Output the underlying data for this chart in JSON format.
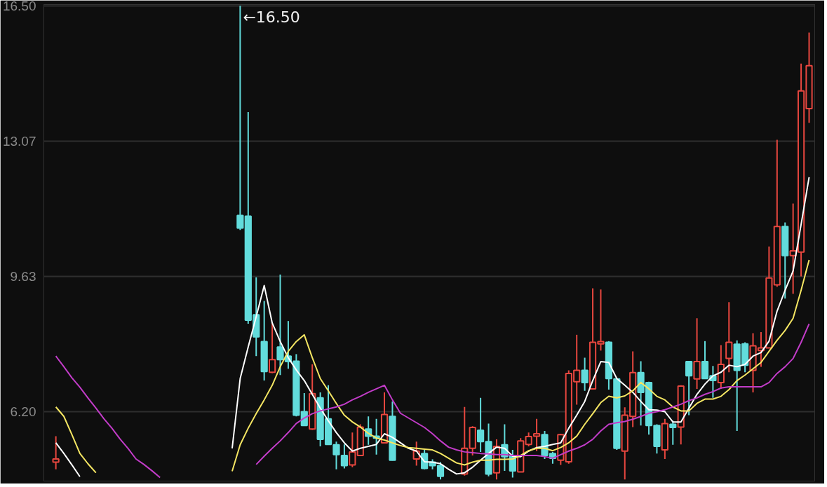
{
  "chart_data": {
    "type": "candlestick",
    "categories": [
      null,
      null,
      null,
      null,
      null,
      null,
      null,
      null,
      null,
      null,
      null,
      null,
      null,
      null,
      null,
      null,
      null,
      null,
      null,
      null,
      null,
      null,
      null,
      null,
      null,
      null,
      null,
      null,
      null,
      null,
      null,
      null,
      null,
      null,
      null,
      null,
      null,
      null,
      null,
      null,
      null,
      null,
      null,
      null,
      null,
      null,
      null,
      null,
      null,
      null,
      null,
      null,
      null,
      null,
      null,
      null,
      null,
      null,
      null,
      null,
      null,
      null,
      null,
      null,
      null,
      null,
      null,
      null,
      null,
      null,
      null,
      null,
      null,
      null,
      null,
      null,
      null,
      null,
      null,
      null,
      null,
      null,
      null,
      null,
      null,
      null,
      null,
      null,
      null,
      null,
      null,
      null,
      null,
      null,
      null
    ],
    "ohlc": [
      [
        4.92,
        5.58,
        4.74,
        5.0
      ],
      null,
      null,
      null,
      null,
      null,
      null,
      null,
      null,
      null,
      null,
      null,
      null,
      null,
      null,
      null,
      null,
      null,
      null,
      null,
      null,
      null,
      null,
      [
        11.18,
        16.5,
        10.81,
        10.86
      ],
      [
        11.16,
        13.8,
        8.43,
        8.52
      ],
      [
        8.66,
        9.61,
        7.61,
        8.1
      ],
      [
        7.98,
        9.01,
        6.99,
        7.22
      ],
      [
        7.2,
        8.45,
        7.18,
        7.52
      ],
      [
        7.84,
        9.68,
        7.13,
        7.52
      ],
      [
        7.61,
        8.5,
        7.29,
        7.47
      ],
      [
        7.48,
        7.66,
        6.08,
        6.11
      ],
      [
        6.2,
        6.67,
        5.85,
        5.85
      ],
      [
        5.76,
        7.4,
        5.74,
        6.66
      ],
      [
        6.55,
        6.69,
        5.32,
        5.5
      ],
      [
        6.02,
        6.87,
        5.36,
        5.37
      ],
      [
        5.36,
        5.44,
        4.74,
        5.11
      ],
      [
        5.09,
        5.37,
        4.76,
        4.83
      ],
      [
        4.85,
        5.67,
        4.79,
        5.18
      ],
      [
        5.09,
        5.88,
        5.08,
        5.81
      ],
      [
        5.76,
        6.08,
        5.36,
        5.58
      ],
      [
        5.58,
        6.02,
        5.11,
        5.53
      ],
      [
        5.41,
        6.69,
        5.4,
        6.13
      ],
      [
        6.08,
        6.46,
        4.96,
        4.97
      ],
      null,
      null,
      [
        5.0,
        5.44,
        4.83,
        5.2
      ],
      [
        5.14,
        5.23,
        4.74,
        4.76
      ],
      [
        4.92,
        4.99,
        4.74,
        4.83
      ],
      [
        4.83,
        4.92,
        4.48,
        4.56
      ],
      null,
      null,
      [
        4.62,
        6.32,
        4.58,
        5.27
      ],
      [
        5.27,
        5.83,
        5.09,
        5.8
      ],
      [
        5.73,
        6.55,
        5.18,
        5.44
      ],
      [
        5.44,
        5.9,
        4.56,
        4.62
      ],
      [
        4.65,
        5.5,
        4.48,
        5.32
      ],
      [
        5.36,
        5.88,
        4.7,
        5.06
      ],
      [
        5.09,
        5.23,
        4.53,
        4.7
      ],
      [
        4.67,
        5.53,
        4.67,
        5.46
      ],
      [
        5.37,
        5.67,
        5.32,
        5.57
      ],
      [
        5.58,
        6.02,
        5.2,
        5.64
      ],
      [
        5.62,
        5.71,
        5.0,
        5.09
      ],
      [
        5.14,
        5.18,
        4.88,
        5.02
      ],
      [
        4.97,
        5.64,
        4.85,
        5.62
      ],
      [
        4.93,
        7.25,
        4.88,
        7.17
      ],
      [
        6.96,
        8.15,
        6.38,
        7.25
      ],
      [
        7.25,
        7.57,
        6.73,
        6.94
      ],
      [
        6.78,
        9.33,
        6.78,
        7.96
      ],
      [
        7.92,
        9.3,
        7.75,
        7.98
      ],
      [
        7.96,
        7.99,
        6.76,
        7.04
      ],
      [
        7.03,
        7.04,
        5.23,
        5.27
      ],
      [
        5.2,
        6.31,
        4.48,
        6.11
      ],
      [
        6.08,
        7.73,
        5.81,
        7.19
      ],
      [
        7.19,
        7.48,
        5.85,
        6.69
      ],
      [
        6.94,
        6.96,
        5.62,
        5.85
      ],
      [
        5.85,
        5.88,
        5.14,
        5.32
      ],
      [
        5.23,
        6.02,
        5.0,
        5.9
      ],
      [
        5.88,
        5.97,
        5.36,
        5.8
      ],
      [
        5.81,
        6.87,
        5.37,
        6.85
      ],
      [
        7.47,
        7.48,
        6.11,
        7.11
      ],
      [
        7.03,
        8.57,
        6.78,
        7.47
      ],
      [
        7.47,
        7.99,
        7.03,
        7.04
      ],
      [
        7.11,
        7.36,
        6.55,
        6.99
      ],
      [
        6.94,
        7.89,
        6.78,
        7.4
      ],
      [
        7.55,
        8.98,
        7.2,
        7.96
      ],
      [
        7.91,
        8.01,
        5.71,
        7.25
      ],
      [
        7.92,
        7.96,
        7.2,
        7.38
      ],
      [
        7.25,
        8.19,
        6.69,
        7.87
      ],
      [
        7.75,
        8.22,
        7.34,
        7.82
      ],
      [
        7.82,
        10.39,
        7.82,
        9.59
      ],
      [
        9.42,
        13.1,
        9.37,
        10.9
      ],
      [
        10.9,
        11.0,
        9.07,
        10.16
      ],
      [
        10.16,
        11.48,
        9.19,
        10.28
      ],
      [
        10.25,
        15.03,
        9.63,
        14.34
      ],
      [
        13.89,
        15.82,
        13.53,
        14.98
      ]
    ],
    "colors": [
      "#e8473f",
      null,
      null,
      null,
      null,
      null,
      null,
      null,
      null,
      null,
      null,
      null,
      null,
      null,
      null,
      null,
      null,
      null,
      null,
      null,
      null,
      null,
      null,
      "#62dcdc",
      "#62dcdc",
      "#62dcdc",
      "#62dcdc",
      "#e8473f",
      "#62dcdc",
      "#62dcdc",
      "#62dcdc",
      "#62dcdc",
      "#e8473f",
      "#62dcdc",
      "#62dcdc",
      "#62dcdc",
      "#62dcdc",
      "#e8473f",
      "#e8473f",
      "#62dcdc",
      "#62dcdc",
      "#e8473f",
      "#62dcdc",
      null,
      null,
      "#e8473f",
      "#62dcdc",
      "#62dcdc",
      "#62dcdc",
      null,
      null,
      "#e8473f",
      "#e8473f",
      "#62dcdc",
      "#62dcdc",
      "#e8473f",
      "#62dcdc",
      "#62dcdc",
      "#e8473f",
      "#e8473f",
      "#e8473f",
      "#62dcdc",
      "#62dcdc",
      "#e8473f",
      "#e8473f",
      "#e8473f",
      "#62dcdc",
      "#e8473f",
      "#e8473f",
      "#62dcdc",
      "#62dcdc",
      "#e8473f",
      "#e8473f",
      "#62dcdc",
      "#62dcdc",
      "#62dcdc",
      "#e8473f",
      "#62dcdc",
      "#e8473f",
      "#62dcdc",
      "#e8473f",
      "#62dcdc",
      "#62dcdc",
      "#e8473f",
      "#e8473f",
      "#62dcdc",
      "#62dcdc",
      "#e8473f",
      "#e8473f",
      "#e8473f",
      "#e8473f",
      "#62dcdc",
      "#e8473f",
      "#e8473f",
      "#e8473f"
    ],
    "series": [
      {
        "type": "line",
        "color": "#ffffff",
        "values": [
          5.41,
          5.14,
          4.85,
          4.55,
          null,
          null,
          null,
          null,
          null,
          null,
          null,
          null,
          null,
          null,
          null,
          null,
          null,
          null,
          null,
          null,
          null,
          null,
          5.27,
          7.04,
          7.84,
          8.61,
          9.4,
          8.45,
          7.98,
          7.57,
          7.26,
          6.99,
          6.64,
          6.29,
          5.97,
          5.67,
          5.41,
          5.2,
          5.27,
          5.32,
          5.37,
          5.64,
          5.55,
          5.41,
          5.27,
          5.2,
          4.93,
          4.92,
          4.88,
          4.74,
          4.62,
          4.65,
          4.79,
          4.97,
          5.14,
          5.3,
          5.27,
          5.07,
          5.06,
          5.2,
          5.29,
          5.32,
          5.37,
          5.41,
          5.78,
          6.11,
          6.46,
          6.99,
          7.47,
          7.45,
          7.04,
          6.87,
          6.69,
          6.46,
          6.25,
          6.24,
          6.2,
          5.94,
          5.94,
          6.29,
          6.64,
          6.9,
          7.11,
          7.2,
          7.38,
          7.34,
          7.4,
          7.61,
          7.7,
          7.99,
          8.75,
          9.28,
          9.77,
          10.95,
          12.15
        ]
      },
      {
        "type": "line",
        "color": "#f5e663",
        "values": [
          6.32,
          6.08,
          5.62,
          5.14,
          4.88,
          4.65,
          null,
          null,
          null,
          null,
          null,
          null,
          null,
          null,
          null,
          null,
          null,
          null,
          null,
          null,
          null,
          null,
          4.69,
          5.36,
          5.78,
          6.15,
          6.5,
          6.87,
          7.34,
          7.73,
          7.98,
          8.15,
          7.57,
          7.04,
          6.73,
          6.41,
          6.11,
          5.94,
          5.81,
          5.65,
          5.53,
          5.48,
          5.41,
          5.34,
          5.29,
          5.27,
          5.25,
          5.23,
          5.14,
          5.02,
          4.9,
          4.85,
          4.92,
          4.97,
          4.97,
          4.99,
          4.99,
          5.0,
          5.09,
          5.21,
          5.27,
          5.27,
          5.21,
          5.29,
          5.41,
          5.58,
          5.88,
          6.15,
          6.43,
          6.59,
          6.55,
          6.6,
          6.73,
          6.94,
          6.78,
          6.59,
          6.5,
          6.32,
          6.22,
          6.22,
          6.41,
          6.52,
          6.52,
          6.59,
          6.76,
          6.99,
          7.13,
          7.29,
          7.45,
          7.73,
          8.01,
          8.26,
          8.57,
          9.28,
          10.05
        ]
      },
      {
        "type": "line",
        "color": "#c23cc8",
        "values": [
          7.61,
          7.34,
          7.06,
          6.82,
          6.55,
          6.29,
          6.02,
          5.78,
          5.51,
          5.27,
          5.0,
          4.86,
          4.7,
          4.53,
          null,
          null,
          null,
          null,
          null,
          null,
          null,
          null,
          null,
          null,
          null,
          4.86,
          5.07,
          5.27,
          5.46,
          5.67,
          5.9,
          6.04,
          6.15,
          6.22,
          6.27,
          6.32,
          6.39,
          6.5,
          6.59,
          6.69,
          6.78,
          6.87,
          6.5,
          6.16,
          6.04,
          5.92,
          5.8,
          5.64,
          5.46,
          5.3,
          5.23,
          5.18,
          5.16,
          5.14,
          5.13,
          5.11,
          5.11,
          5.09,
          5.09,
          5.09,
          5.09,
          5.06,
          5.02,
          5.11,
          5.2,
          5.27,
          5.36,
          5.5,
          5.71,
          5.88,
          5.92,
          5.95,
          6.01,
          6.08,
          6.16,
          6.2,
          6.25,
          6.32,
          6.39,
          6.48,
          6.55,
          6.64,
          6.71,
          6.8,
          6.83,
          6.83,
          6.83,
          6.83,
          6.83,
          6.94,
          7.17,
          7.34,
          7.55,
          7.96,
          8.43
        ]
      }
    ],
    "annotations": [
      "←16.50"
    ],
    "ylim": [
      4.44,
      16.53
    ],
    "yticks": [
      {
        "value": 16.5,
        "label": "16.50"
      },
      13.07,
      9.63,
      {
        "value": 6.2,
        "label": "6.20"
      }
    ],
    "grid": "y",
    "tick_labels": "y"
  }
}
